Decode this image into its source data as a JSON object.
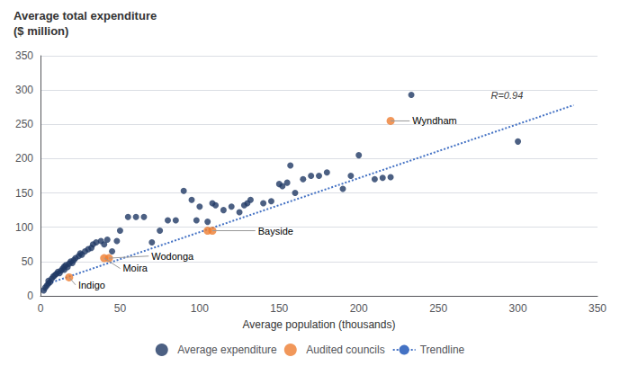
{
  "chart_data": {
    "type": "scatter",
    "title": "Average total expenditure",
    "subtitle": "($ million)",
    "xlabel": "Average population (thousands)",
    "xlim": [
      0,
      350
    ],
    "ylim": [
      0,
      350
    ],
    "xticks": [
      0,
      50,
      100,
      150,
      200,
      250,
      300,
      350
    ],
    "yticks": [
      0,
      50,
      100,
      150,
      200,
      250,
      300,
      350
    ],
    "grid": "y",
    "legend": "bottom",
    "series": [
      {
        "name": "Average expenditure",
        "type": "scatter",
        "color": "#1F3864",
        "marker": "circle",
        "x": [
          2,
          3,
          4,
          5,
          5,
          6,
          7,
          8,
          9,
          10,
          11,
          12,
          13,
          14,
          15,
          15,
          16,
          17,
          18,
          19,
          20,
          21,
          22,
          24,
          25,
          26,
          28,
          30,
          32,
          33,
          35,
          38,
          40,
          42,
          45,
          48,
          50,
          55,
          60,
          65,
          70,
          75,
          80,
          85,
          90,
          95,
          98,
          100,
          105,
          108,
          110,
          115,
          120,
          125,
          128,
          130,
          132,
          140,
          145,
          150,
          152,
          155,
          157,
          160,
          165,
          170,
          175,
          180,
          190,
          195,
          200,
          210,
          215,
          220,
          233,
          300
        ],
        "values": [
          8,
          12,
          15,
          18,
          22,
          20,
          25,
          28,
          30,
          32,
          35,
          33,
          37,
          40,
          38,
          43,
          45,
          42,
          47,
          50,
          48,
          52,
          55,
          58,
          62,
          60,
          65,
          68,
          70,
          75,
          78,
          80,
          75,
          82,
          65,
          80,
          95,
          115,
          115,
          115,
          78,
          95,
          110,
          110,
          153,
          140,
          110,
          130,
          108,
          135,
          132,
          125,
          130,
          122,
          132,
          135,
          140,
          135,
          138,
          163,
          160,
          165,
          190,
          150,
          170,
          175,
          175,
          180,
          156,
          175,
          205,
          170,
          172,
          173,
          293,
          225
        ]
      },
      {
        "name": "Audited councils",
        "type": "scatter",
        "color": "#ED7D31",
        "marker": "circle",
        "x": [
          18,
          40,
          43,
          105,
          108,
          220
        ],
        "values": [
          27,
          55,
          55,
          95,
          95,
          255
        ]
      },
      {
        "name": "Trendline",
        "type": "line",
        "color": "#4472C4",
        "line_style": "dotted",
        "x": [
          5,
          335
        ],
        "values": [
          18,
          278
        ]
      }
    ],
    "annotations": [
      {
        "text": "Indigo",
        "x": 18,
        "y": 27,
        "text_x": 22,
        "text_y": 16,
        "color": "#999999"
      },
      {
        "text": "Moira",
        "x": 40,
        "y": 55,
        "text_x": 50,
        "text_y": 40,
        "color": "#999999"
      },
      {
        "text": "Wodonga",
        "x": 43,
        "y": 55,
        "text_x": 68,
        "text_y": 58,
        "color": "#999999"
      },
      {
        "text": "Bayside",
        "x": 108,
        "y": 95,
        "text_x": 135,
        "text_y": 95,
        "color": "#999999"
      },
      {
        "text": "Wyndham",
        "x": 220,
        "y": 255,
        "text_x": 232,
        "text_y": 255,
        "color": "#999999"
      },
      {
        "text": "R=0.94",
        "x": 283,
        "y": 292
      }
    ]
  }
}
